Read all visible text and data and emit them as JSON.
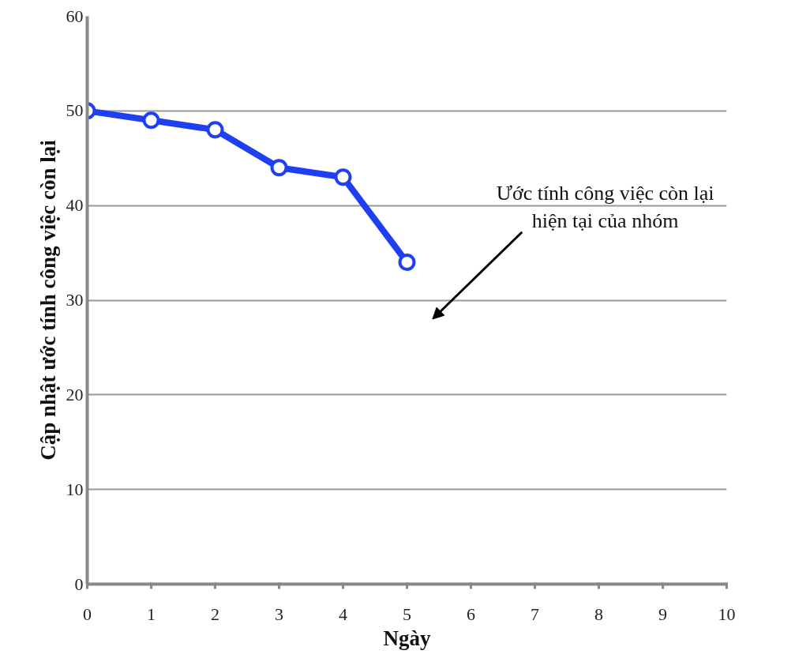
{
  "chart_data": {
    "type": "line",
    "xlabel": "Ngày",
    "ylabel": "Cập nhật ước tính công việc còn lại",
    "x": [
      0,
      1,
      2,
      3,
      4,
      5
    ],
    "series": [
      {
        "color": "#1f3ff2",
        "values": [
          50,
          49,
          48,
          44,
          43,
          34
        ]
      }
    ],
    "xlim": [
      0,
      10
    ],
    "xticks": [
      0,
      1,
      2,
      3,
      4,
      5,
      6,
      7,
      8,
      9,
      10
    ],
    "ylim": [
      0,
      60
    ],
    "yticks": [
      0,
      10,
      20,
      30,
      40,
      50,
      60
    ],
    "grid": "y",
    "marker": "circle",
    "line_style": "solid",
    "annotations": [
      "Ước tính công việc còn lại\nhiện tại của nhóm"
    ]
  }
}
